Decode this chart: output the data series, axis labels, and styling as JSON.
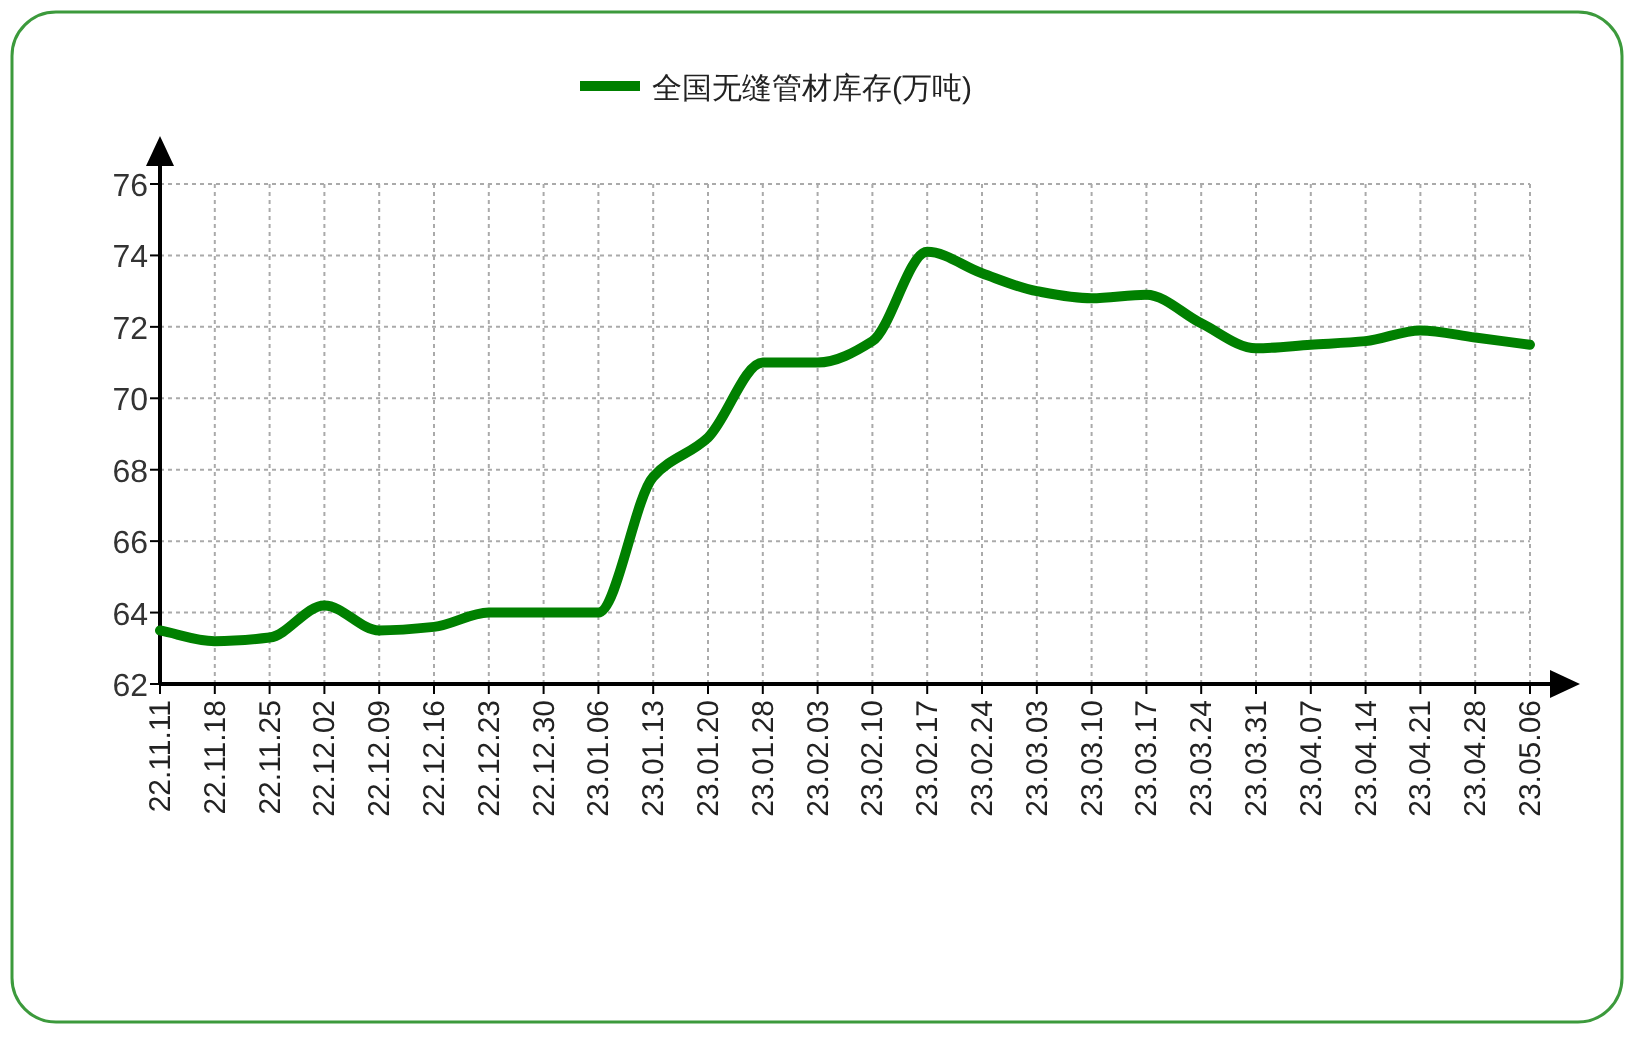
{
  "chart_data": {
    "type": "line",
    "categories": [
      "22.11.11",
      "22.11.18",
      "22.11.25",
      "22.12.02",
      "22.12.09",
      "22.12.16",
      "22.12.23",
      "22.12.30",
      "23.01.06",
      "23.01.13",
      "23.01.20",
      "23.01.28",
      "23.02.03",
      "23.02.10",
      "23.02.17",
      "23.02.24",
      "23.03.03",
      "23.03.10",
      "23.03.17",
      "23.03.24",
      "23.03.31",
      "23.04.07",
      "23.04.14",
      "23.04.21",
      "23.04.28",
      "23.05.06"
    ],
    "series": [
      {
        "name": "全国无缝管材库存(万吨)",
        "color": "#008000",
        "values": [
          63.5,
          63.2,
          63.3,
          64.2,
          63.5,
          63.6,
          64.0,
          64.0,
          64.0,
          67.8,
          68.9,
          71.0,
          71.0,
          71.6,
          74.1,
          73.5,
          73.0,
          72.8,
          72.9,
          72.1,
          71.4,
          71.5,
          71.6,
          71.9,
          71.7,
          71.5
        ]
      }
    ],
    "ylim": [
      62,
      76
    ],
    "yticks": [
      62,
      64,
      66,
      68,
      70,
      72,
      74,
      76
    ],
    "grid": true,
    "legend": "top",
    "marker": "none",
    "line_style": "solid"
  }
}
